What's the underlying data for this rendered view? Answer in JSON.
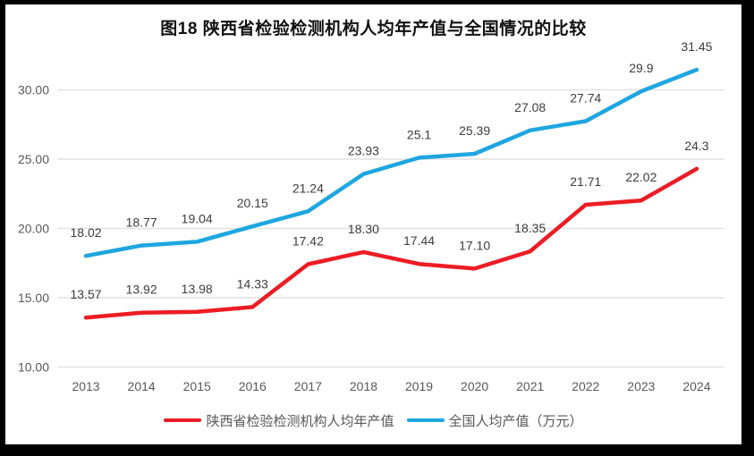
{
  "title": "图18 陕西省检验检测机构人均年产值与全国情况的比较",
  "chart_data": {
    "type": "line",
    "categories": [
      "2013",
      "2014",
      "2015",
      "2016",
      "2017",
      "2018",
      "2019",
      "2020",
      "2021",
      "2022",
      "2023",
      "2024"
    ],
    "series": [
      {
        "name": "陕西省检验检测机构人均年产值",
        "color": "#ED1C24",
        "values": [
          13.57,
          13.92,
          13.98,
          14.33,
          17.42,
          18.3,
          17.44,
          17.1,
          18.35,
          21.71,
          22.02,
          24.3
        ],
        "labels": [
          "13.57",
          "13.92",
          "13.98",
          "14.33",
          "17.42",
          "18.30",
          "17.44",
          "17.10",
          "18.35",
          "21.71",
          "22.02",
          "24.3"
        ]
      },
      {
        "name": "全国人均产值（万元）",
        "color": "#1EA6E0",
        "values": [
          18.02,
          18.77,
          19.04,
          20.15,
          21.24,
          23.93,
          25.1,
          25.39,
          27.08,
          27.74,
          29.9,
          31.45
        ],
        "labels": [
          "18.02",
          "18.77",
          "19.04",
          "20.15",
          "21.24",
          "23.93",
          "25.1",
          "25.39",
          "27.08",
          "27.74",
          "29.9",
          "31.45"
        ]
      }
    ],
    "title": "图18 陕西省检验检测机构人均年产值与全国情况的比较",
    "xlabel": "",
    "ylabel": "",
    "ylim": [
      10,
      32.5
    ],
    "yticks": [
      10,
      15,
      20,
      25,
      30
    ],
    "ytick_labels": [
      "10.00",
      "15.00",
      "20.00",
      "25.00",
      "30.00"
    ],
    "grid": true,
    "legend_position": "bottom",
    "colors": {
      "gridline": "#E2E2E2",
      "axis_text": "#595959",
      "data_label_text": "#3D3D3D",
      "frame": "#000000",
      "background": "#FFFFFF"
    }
  }
}
